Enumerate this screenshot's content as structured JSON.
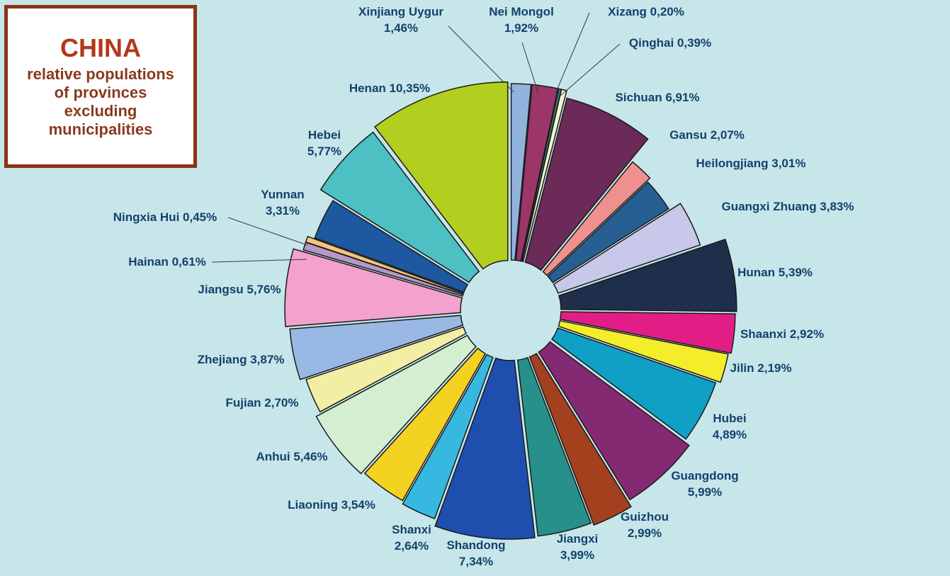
{
  "chart_data": {
    "type": "pie",
    "title": "CHINA",
    "subtitle": "relative populations\nof provinces\nexcluding\nmunicipalities",
    "slices": [
      {
        "name": "Xinjiang Uygur",
        "value": 1.46,
        "label": "Xinjiang Uygur\n1,46%",
        "color": "#92b2de"
      },
      {
        "name": "Nei Mongol",
        "value": 1.92,
        "label": "Nei Mongol\n1,92%",
        "color": "#9c3568"
      },
      {
        "name": "Xizang",
        "value": 0.2,
        "label": "Xizang 0,20%",
        "color": "#3a7a7a"
      },
      {
        "name": "Qinghai",
        "value": 0.39,
        "label": "Qinghai 0,39%",
        "color": "#f4f4d0"
      },
      {
        "name": "Sichuan",
        "value": 6.91,
        "label": "Sichuan 6,91%",
        "color": "#6b2a58"
      },
      {
        "name": "Gansu",
        "value": 2.07,
        "label": "Gansu 2,07%",
        "color": "#ee918e"
      },
      {
        "name": "Heilongjiang",
        "value": 3.01,
        "label": "Heilongjiang 3,01%",
        "color": "#285f92"
      },
      {
        "name": "Guangxi Zhuang",
        "value": 3.83,
        "label": "Guangxi Zhuang 3,83%",
        "color": "#c8c8ea"
      },
      {
        "name": "Hunan",
        "value": 5.39,
        "label": "Hunan 5,39%",
        "color": "#1f2e4a"
      },
      {
        "name": "Shaanxi",
        "value": 2.92,
        "label": "Shaanxi 2,92%",
        "color": "#e21e86"
      },
      {
        "name": "Jilin",
        "value": 2.19,
        "label": "Jilin 2,19%",
        "color": "#f4ee2a"
      },
      {
        "name": "Hubei",
        "value": 4.89,
        "label": "Hubei\n4,89%",
        "color": "#10a0c6"
      },
      {
        "name": "Guangdong",
        "value": 5.99,
        "label": "Guangdong\n5,99%",
        "color": "#842a72"
      },
      {
        "name": "Guizhou",
        "value": 2.99,
        "label": "Guizhou\n2,99%",
        "color": "#a3401e"
      },
      {
        "name": "Jiangxi",
        "value": 3.99,
        "label": "Jiangxi\n3,99%",
        "color": "#27908a"
      },
      {
        "name": "Shandong",
        "value": 7.34,
        "label": "Shandong\n7,34%",
        "color": "#1e4fae"
      },
      {
        "name": "Shanxi",
        "value": 2.64,
        "label": "Shanxi\n2,64%",
        "color": "#36b8e0"
      },
      {
        "name": "Liaoning",
        "value": 3.54,
        "label": "Liaoning 3,54%",
        "color": "#f4d222"
      },
      {
        "name": "Anhui",
        "value": 5.46,
        "label": "Anhui 5,46%",
        "color": "#d4eed2"
      },
      {
        "name": "Fujian",
        "value": 2.7,
        "label": "Fujian 2,70%",
        "color": "#f2eea4"
      },
      {
        "name": "Zhejiang",
        "value": 3.87,
        "label": "Zhejiang 3,87%",
        "color": "#9ab8e4"
      },
      {
        "name": "Jiangsu",
        "value": 5.76,
        "label": "Jiangsu 5,76%",
        "color": "#f2a2cc"
      },
      {
        "name": "Hainan",
        "value": 0.61,
        "label": "Hainan 0,61%",
        "color": "#b698c8"
      },
      {
        "name": "Ningxia Hui",
        "value": 0.45,
        "label": "Ningxia Hui 0,45%",
        "color": "#f6c480"
      },
      {
        "name": "Yunnan",
        "value": 3.31,
        "label": "Yunnan\n3,31%",
        "color": "#1d58a0"
      },
      {
        "name": "Hebei",
        "value": 5.77,
        "label": "Hebei\n5,77%",
        "color": "#4cc0c2"
      },
      {
        "name": "Henan",
        "value": 10.35,
        "label": "Henan 10,35%",
        "color": "#b2ce1e"
      }
    ]
  }
}
